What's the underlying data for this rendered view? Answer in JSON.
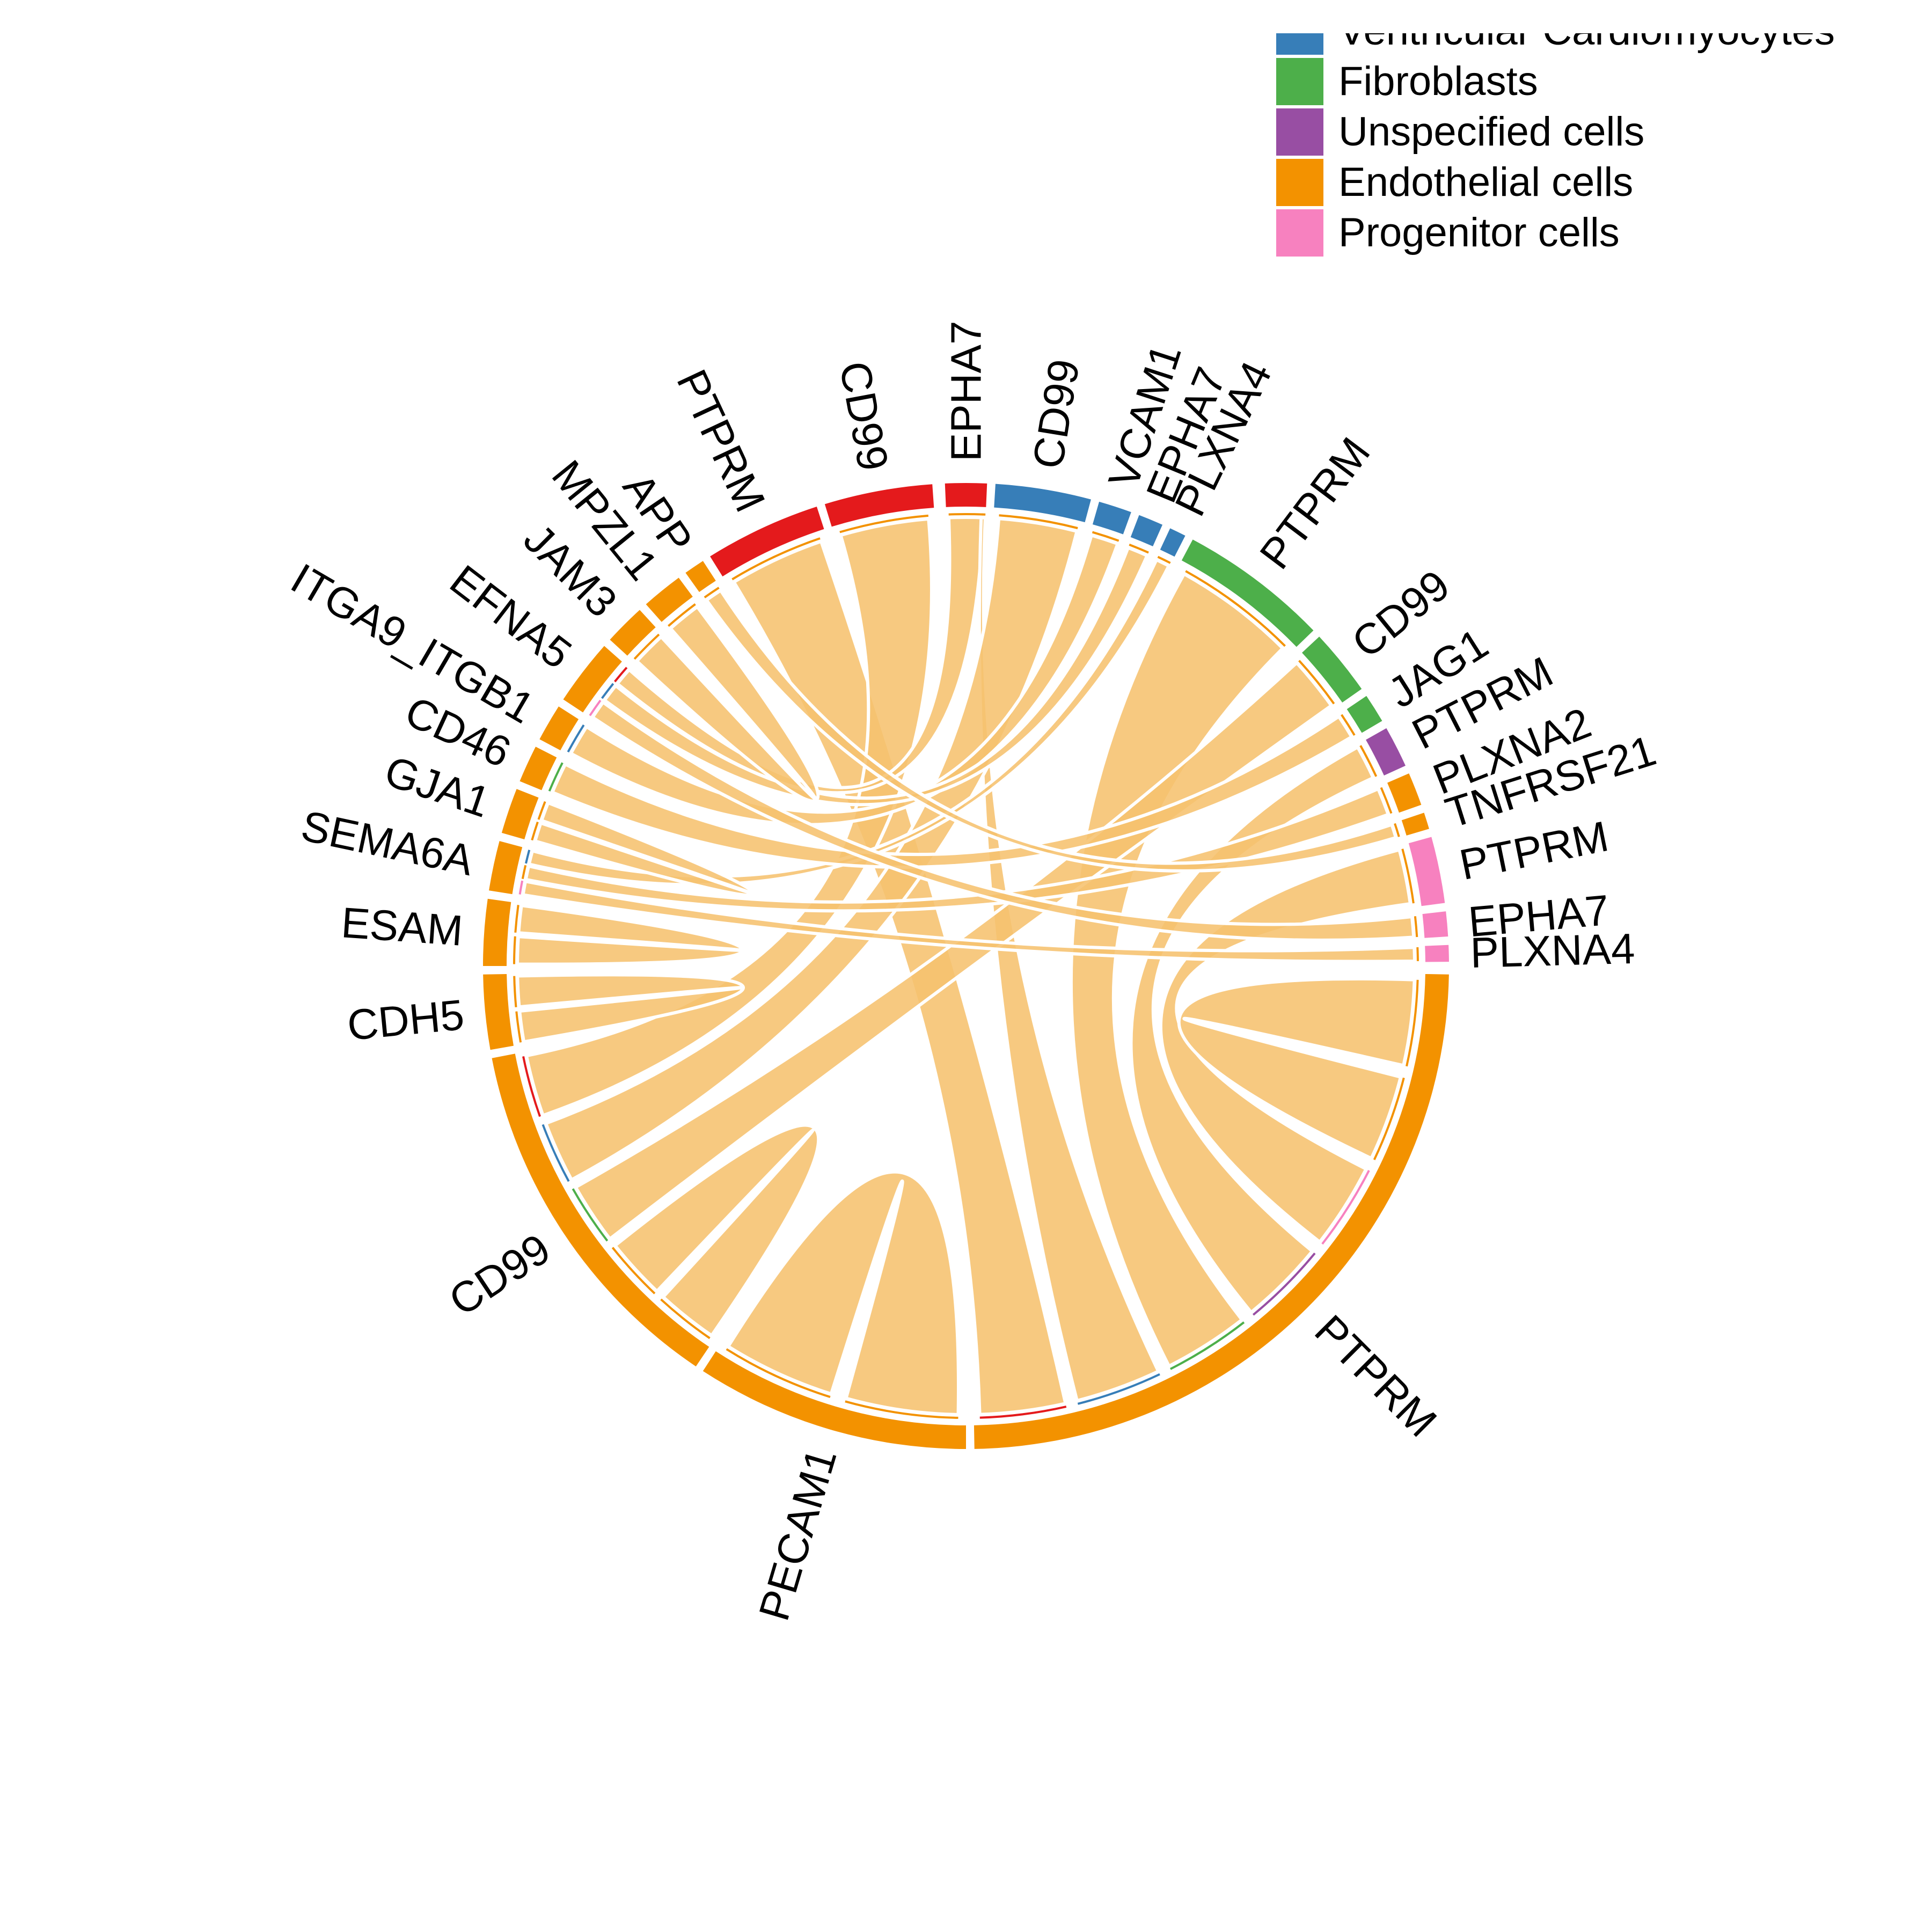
{
  "legend": {
    "items": [
      {
        "label": "Ventricular Cardiomyocytes",
        "color": "#377EB8"
      },
      {
        "label": "Fibroblasts",
        "color": "#4DAF4A"
      },
      {
        "label": "Unspecified cells",
        "color": "#984EA3"
      },
      {
        "label": "Endothelial cells",
        "color": "#F39200"
      },
      {
        "label": "Progenitor cells",
        "color": "#F781BF"
      }
    ]
  },
  "colors": {
    "Atrial": "#E41A1C",
    "Ventricular": "#377EB8",
    "Fibroblasts": "#4DAF4A",
    "Unspecified": "#984EA3",
    "Endothelial": "#F39200",
    "Progenitor": "#F781BF",
    "link": "#F6C26E"
  },
  "chart_data": {
    "type": "chord",
    "sectors": [
      {
        "label": "EPHA7",
        "group": "Atrial",
        "start": 87.5,
        "end": 92.5
      },
      {
        "label": "CD99",
        "group": "Atrial",
        "start": 94.0,
        "end": 107.0
      },
      {
        "label": "PTPRM",
        "group": "Atrial",
        "start": 108.0,
        "end": 122.0
      },
      {
        "label": "APP",
        "group": "Endothelial",
        "start": 123.0,
        "end": 125.5
      },
      {
        "label": "MPZL1",
        "group": "Endothelial",
        "start": 126.5,
        "end": 131.5
      },
      {
        "label": "JAM3",
        "group": "Endothelial",
        "start": 132.5,
        "end": 137.5
      },
      {
        "label": "EFNA5",
        "group": "Endothelial",
        "start": 138.5,
        "end": 146.5
      },
      {
        "label": "ITGA9_ITGB1",
        "group": "Endothelial",
        "start": 147.5,
        "end": 152.0
      },
      {
        "label": "CD46",
        "group": "Endothelial",
        "start": 153.0,
        "end": 157.5
      },
      {
        "label": "GJA1",
        "group": "Endothelial",
        "start": 158.5,
        "end": 164.0
      },
      {
        "label": "SEMA6A",
        "group": "Endothelial",
        "start": 165.0,
        "end": 171.0
      },
      {
        "label": "ESAM",
        "group": "Endothelial",
        "start": 172.0,
        "end": 180.0
      },
      {
        "label": "CDH5",
        "group": "Endothelial",
        "start": 181.0,
        "end": 190.0
      },
      {
        "label": "CD99",
        "group": "Endothelial",
        "start": 191.0,
        "end": 236.0
      },
      {
        "label": "PECAM1",
        "group": "Endothelial",
        "start": 237.0,
        "end": 270.0
      },
      {
        "label": "PTPRM",
        "group": "Endothelial",
        "start": 271.0,
        "end": 359.0
      },
      {
        "label": "PLXNA4",
        "group": "Progenitor",
        "start": 0.5,
        "end": 2.5
      },
      {
        "label": "EPHA7",
        "group": "Progenitor",
        "start": 3.5,
        "end": 6.5
      },
      {
        "label": "PTPRM",
        "group": "Progenitor",
        "start": 7.5,
        "end": 15.5
      },
      {
        "label": "TNFRSF21",
        "group": "Endothelial",
        "start": 16.5,
        "end": 18.5
      },
      {
        "label": "PLXNA2",
        "group": "Endothelial",
        "start": 19.5,
        "end": 23.5
      },
      {
        "label": "PTPRM",
        "group": "Unspecified",
        "start": 24.5,
        "end": 29.5
      },
      {
        "label": "JAG1",
        "group": "Fibroblasts",
        "start": 30.5,
        "end": 34.0
      },
      {
        "label": "CD99",
        "group": "Fibroblasts",
        "start": 35.0,
        "end": 43.0
      },
      {
        "label": "PTPRM",
        "group": "Fibroblasts",
        "start": 44.0,
        "end": 62.0
      },
      {
        "label": "PLXNA4",
        "group": "Ventricular",
        "start": 63.0,
        "end": 65.0
      },
      {
        "label": "EPHA7",
        "group": "Ventricular",
        "start": 66.0,
        "end": 69.0
      },
      {
        "label": "VCAM1",
        "group": "Ventricular",
        "start": 70.0,
        "end": 74.0
      },
      {
        "label": "CD99",
        "group": "Ventricular",
        "start": 75.0,
        "end": 86.5
      },
      {
        "label": "PTPRM",
        "group": "Ventricular",
        "start": 87.5,
        "end": 87.5
      }
    ],
    "links": [
      {
        "from": "PTPRM (Atrial)",
        "to": "PTPRM (Endothelial)"
      },
      {
        "from": "CD99 (Atrial)",
        "to": "CD99 (Endothelial)"
      },
      {
        "from": "EPHA7 (Atrial)",
        "to": "EFNA5 (Endothelial)"
      },
      {
        "from": "PTPRM (Ventricular)",
        "to": "PTPRM (Endothelial)"
      },
      {
        "from": "CD99 (Ventricular)",
        "to": "CD99 (Endothelial)"
      },
      {
        "from": "VCAM1 (Ventricular)",
        "to": "ITGA9_ITGB1 (Endothelial)"
      },
      {
        "from": "EPHA7 (Ventricular)",
        "to": "EFNA5 (Endothelial)"
      },
      {
        "from": "PLXNA4 (Ventricular)",
        "to": "SEMA6A (Endothelial)"
      },
      {
        "from": "PTPRM (Fibroblasts)",
        "to": "PTPRM (Endothelial)"
      },
      {
        "from": "CD99 (Fibroblasts)",
        "to": "CD99 (Endothelial)"
      },
      {
        "from": "JAG1 (Fibroblasts)",
        "to": "CD46 (Endothelial)"
      },
      {
        "from": "PTPRM (Unspecified)",
        "to": "PTPRM (Endothelial)"
      },
      {
        "from": "PLXNA2 (Endothelial)",
        "to": "SEMA6A (Endothelial)"
      },
      {
        "from": "TNFRSF21 (Endothelial)",
        "to": "APP (Endothelial)"
      },
      {
        "from": "PTPRM (Progenitor)",
        "to": "PTPRM (Endothelial)"
      },
      {
        "from": "EPHA7 (Progenitor)",
        "to": "EFNA5 (Endothelial)"
      },
      {
        "from": "PLXNA4 (Progenitor)",
        "to": "SEMA6A (Endothelial)"
      },
      {
        "from": "ESAM (Endothelial)",
        "to": "ESAM (Endothelial)"
      },
      {
        "from": "CDH5 (Endothelial)",
        "to": "CDH5 (Endothelial)"
      },
      {
        "from": "CD99 (Endothelial)",
        "to": "CD99 (Endothelial)"
      },
      {
        "from": "PECAM1 (Endothelial)",
        "to": "PECAM1 (Endothelial)"
      },
      {
        "from": "PTPRM (Endothelial)",
        "to": "PTPRM (Endothelial)"
      },
      {
        "from": "GJA1 (Endothelial)",
        "to": "GJA1 (Endothelial)"
      },
      {
        "from": "JAM3 (Endothelial)",
        "to": "MPZL1 (Endothelial)"
      }
    ]
  }
}
